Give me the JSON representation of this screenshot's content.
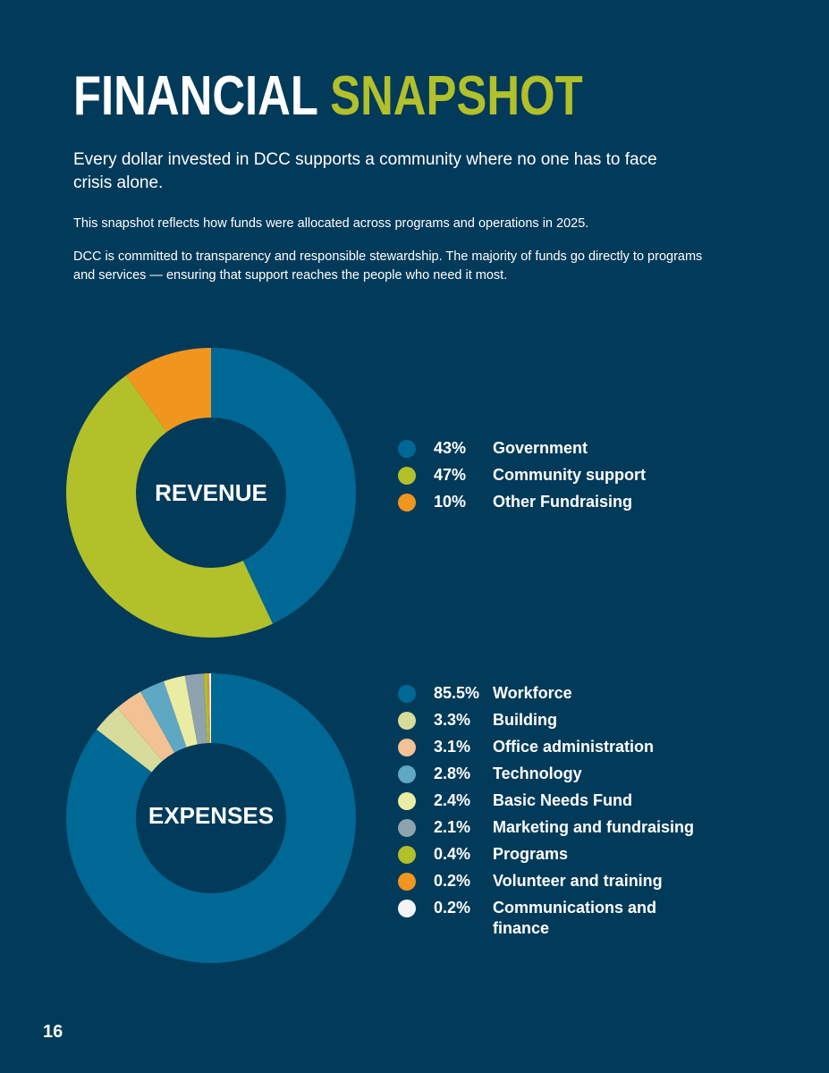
{
  "header": {
    "title_main": "FINANCIAL",
    "title_accent": "SNAPSHOT",
    "lead": "Every dollar invested in DCC supports a community where no one has to face crisis alone.",
    "paragraph_1": "This snapshot reflects how funds were allocated across programs and operations in 2025.",
    "paragraph_2": "DCC is committed to transparency and responsible stewardship. The majority of funds go directly to programs and services — ensuring that support reaches the people who need it most."
  },
  "colors": {
    "background": "#023a5a",
    "accent": "#b2c02a"
  },
  "chart_data": [
    {
      "type": "pie",
      "variant": "donut",
      "title": "REVENUE",
      "legend_position": "right",
      "series": [
        {
          "label": "Government",
          "value": 43,
          "display": "43%",
          "color": "#006894"
        },
        {
          "label": "Community support",
          "value": 47,
          "display": "47%",
          "color": "#b2c02a"
        },
        {
          "label": "Other Fundraising",
          "value": 10,
          "display": "10%",
          "color": "#f0961e"
        }
      ]
    },
    {
      "type": "pie",
      "variant": "donut",
      "title": "EXPENSES",
      "legend_position": "right",
      "series": [
        {
          "label": "Workforce",
          "value": 85.5,
          "display": "85.5%",
          "color": "#006894"
        },
        {
          "label": "Building",
          "value": 3.3,
          "display": "3.3%",
          "color": "#d8dc9a"
        },
        {
          "label": "Office administration",
          "value": 3.1,
          "display": "3.1%",
          "color": "#f2c194"
        },
        {
          "label": "Technology",
          "value": 2.8,
          "display": "2.8%",
          "color": "#5fa8c4"
        },
        {
          "label": "Basic Needs Fund",
          "value": 2.4,
          "display": "2.4%",
          "color": "#eaeca4"
        },
        {
          "label": "Marketing and fundraising",
          "value": 2.1,
          "display": "2.1%",
          "color": "#8ea3ad"
        },
        {
          "label": "Programs",
          "value": 0.4,
          "display": "0.4%",
          "color": "#b2c02a"
        },
        {
          "label": "Volunteer and training",
          "value": 0.2,
          "display": "0.2%",
          "color": "#f0961e"
        },
        {
          "label": "Communications and finance",
          "value": 0.2,
          "display": "0.2%",
          "color": "#f2f4f6"
        }
      ]
    }
  ],
  "footer": {
    "page_number": "16"
  }
}
